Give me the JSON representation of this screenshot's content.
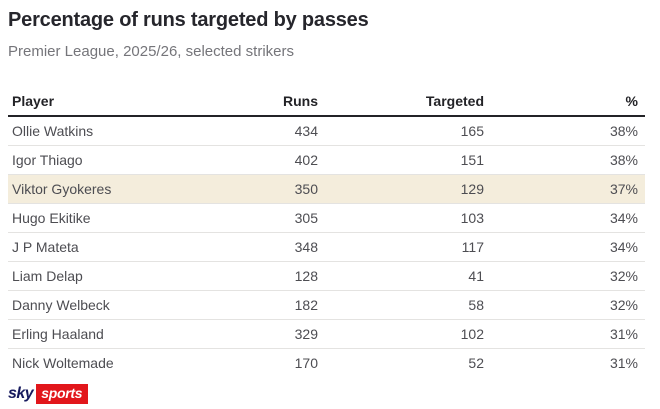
{
  "title": "Percentage of runs targeted by passes",
  "subtitle": "Premier League, 2025/26, selected strikers",
  "table": {
    "columns": [
      "Player",
      "Runs",
      "Targeted",
      "%"
    ],
    "highlight_color": "#f4eddc",
    "rows": [
      {
        "player": "Ollie Watkins",
        "runs": "434",
        "targeted": "165",
        "pct": "38%",
        "highlight": false
      },
      {
        "player": "Igor Thiago",
        "runs": "402",
        "targeted": "151",
        "pct": "38%",
        "highlight": false
      },
      {
        "player": "Viktor Gyokeres",
        "runs": "350",
        "targeted": "129",
        "pct": "37%",
        "highlight": true
      },
      {
        "player": "Hugo Ekitike",
        "runs": "305",
        "targeted": "103",
        "pct": "34%",
        "highlight": false
      },
      {
        "player": "J P Mateta",
        "runs": "348",
        "targeted": "117",
        "pct": "34%",
        "highlight": false
      },
      {
        "player": "Liam Delap",
        "runs": "128",
        "targeted": "41",
        "pct": "32%",
        "highlight": false
      },
      {
        "player": "Danny Welbeck",
        "runs": "182",
        "targeted": "58",
        "pct": "32%",
        "highlight": false
      },
      {
        "player": "Erling Haaland",
        "runs": "329",
        "targeted": "102",
        "pct": "31%",
        "highlight": false
      },
      {
        "player": "Nick Woltemade",
        "runs": "170",
        "targeted": "52",
        "pct": "31%",
        "highlight": false
      }
    ]
  },
  "branding": {
    "sky_label": "sky",
    "sports_label": "sports",
    "navy": "#161a5e",
    "red": "#e2161b"
  }
}
